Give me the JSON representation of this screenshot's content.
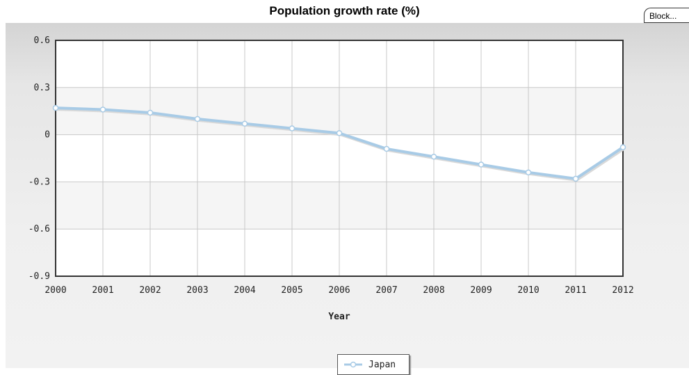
{
  "toolbar": {
    "block_label": "Block..."
  },
  "chart_data": {
    "type": "line",
    "title": "Population growth rate (%)",
    "xlabel": "Year",
    "ylabel": "",
    "x": [
      2000,
      2001,
      2002,
      2003,
      2004,
      2005,
      2006,
      2007,
      2008,
      2009,
      2010,
      2011,
      2012
    ],
    "xlim": [
      2000,
      2012
    ],
    "ylim": [
      -0.9,
      0.6
    ],
    "yticks": [
      0.6,
      0.3,
      0,
      -0.3,
      -0.6,
      -0.9
    ],
    "ytick_labels": [
      "0.6",
      "0.3",
      "0",
      "-0.3",
      "-0.6",
      "-0.9"
    ],
    "xtick_labels": [
      "2000",
      "2001",
      "2002",
      "2003",
      "2004",
      "2005",
      "2006",
      "2007",
      "2008",
      "2009",
      "2010",
      "2011",
      "2012"
    ],
    "series": [
      {
        "name": "Japan",
        "values": [
          0.17,
          0.16,
          0.14,
          0.1,
          0.07,
          0.04,
          0.01,
          -0.09,
          -0.14,
          -0.19,
          -0.24,
          -0.28,
          -0.08
        ],
        "color": "#a8cbe6"
      }
    ],
    "grid": true,
    "legend_position": "bottom-center"
  }
}
